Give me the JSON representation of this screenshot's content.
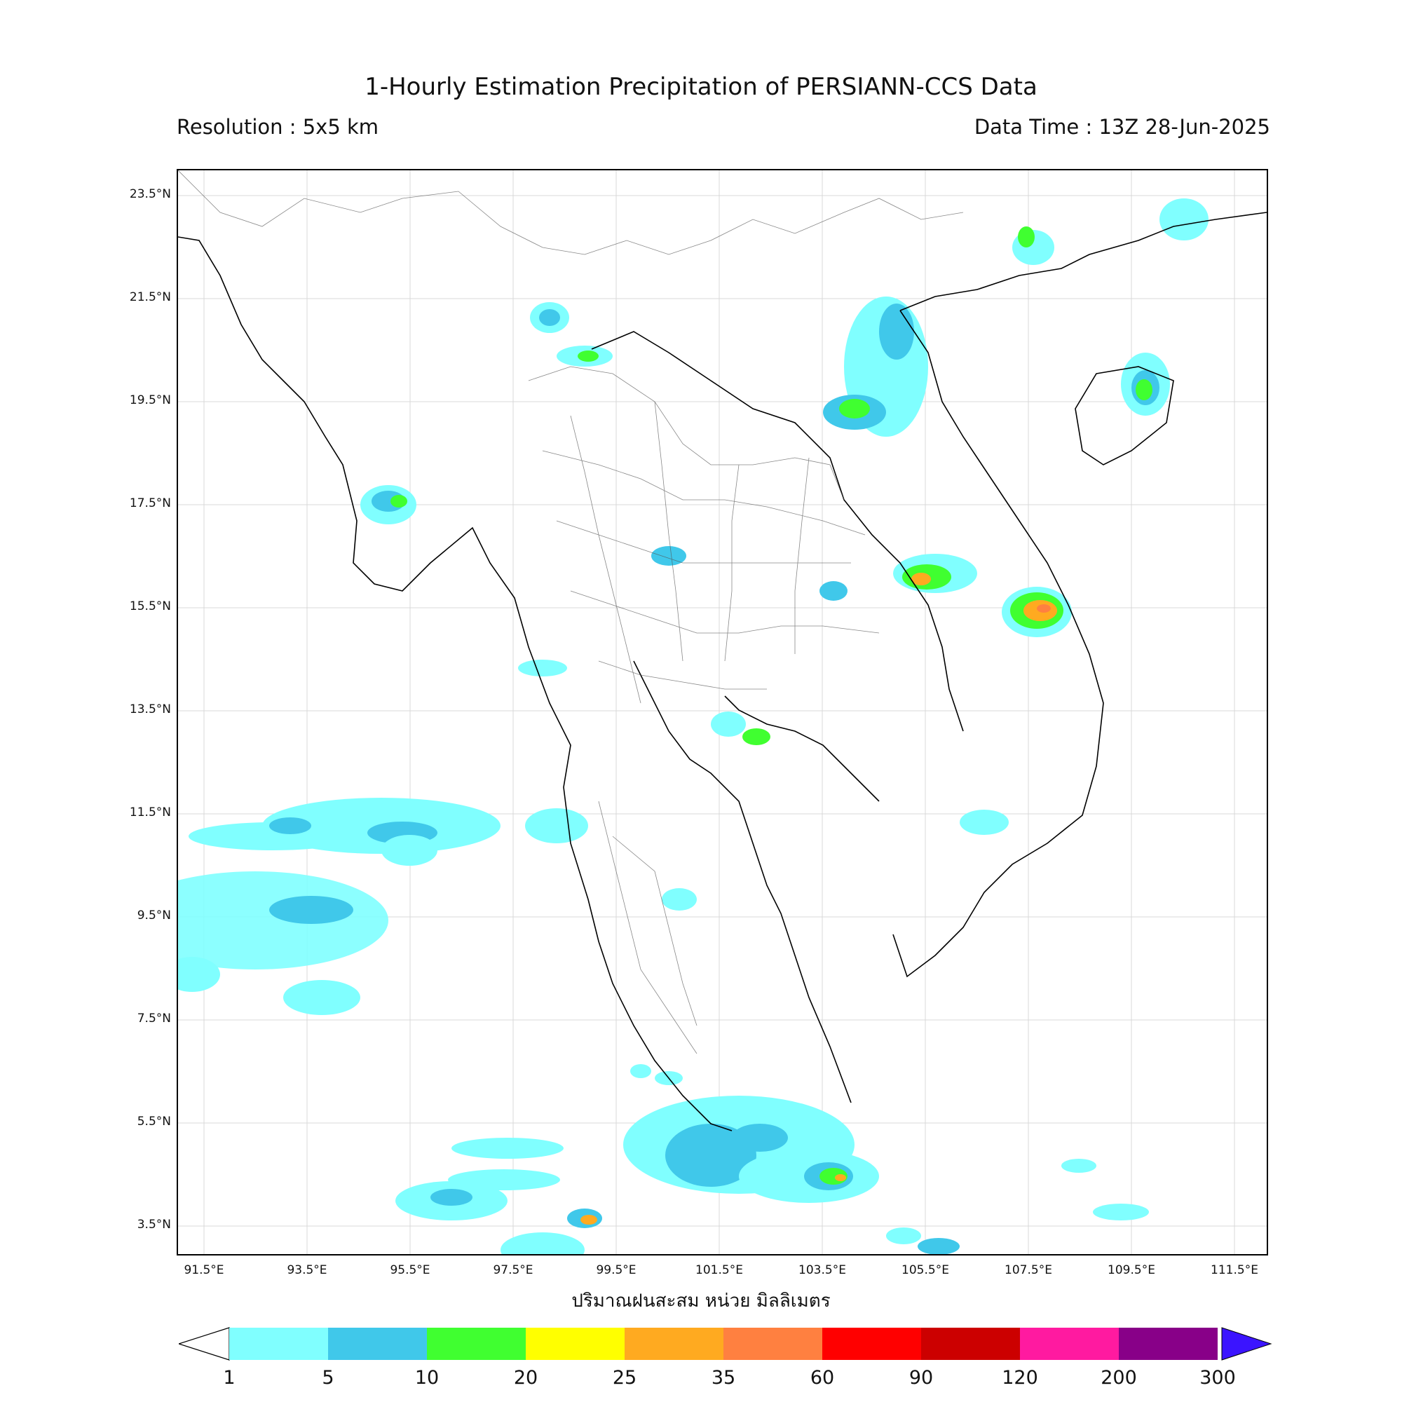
{
  "header": {
    "title": "1-Hourly Estimation Precipitation of PERSIANN-CCS Data",
    "resolution": "Resolution : 5x5 km",
    "data_time": "Data Time : 13Z 28-Jun-2025"
  },
  "axes": {
    "lat_ticks": [
      "23.5°N",
      "21.5°N",
      "19.5°N",
      "17.5°N",
      "15.5°N",
      "13.5°N",
      "11.5°N",
      "9.5°N",
      "7.5°N",
      "5.5°N",
      "3.5°N"
    ],
    "lon_ticks": [
      "91.5°E",
      "93.5°E",
      "95.5°E",
      "97.5°E",
      "99.5°E",
      "101.5°E",
      "103.5°E",
      "105.5°E",
      "107.5°E",
      "109.5°E",
      "111.5°E"
    ],
    "x_title": "ปริมาณฝนสะสม หน่วย มิลลิเมตร"
  },
  "colorbar": {
    "colors": [
      "#80ffff",
      "#40c8ea",
      "#40ff30",
      "#ffff00",
      "#ffaa20",
      "#ff8040",
      "#ff0000",
      "#cc0000",
      "#ff1aa0",
      "#880088",
      "#3b14ff"
    ],
    "ticks": [
      "1",
      "5",
      "10",
      "20",
      "25",
      "35",
      "60",
      "90",
      "120",
      "200",
      "300"
    ]
  },
  "colors": {
    "light_rain": "#80ffff",
    "moderate_rain": "#40c8ea",
    "heavy_rain": "#40ff30",
    "very_heavy": "#ffaa20"
  }
}
